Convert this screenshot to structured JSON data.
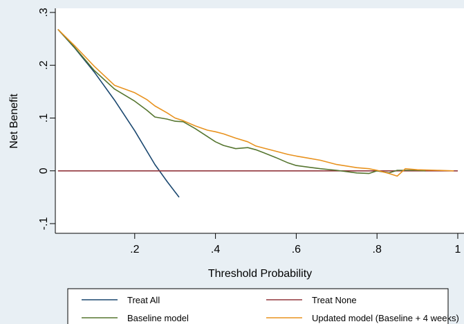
{
  "chart_data": {
    "type": "line",
    "title": "",
    "xlabel": "Threshold Probability",
    "ylabel": "Net Benefit",
    "xlim": [
      0,
      1
    ],
    "ylim": [
      -0.1,
      0.3
    ],
    "x_ticks": [
      0.2,
      0.4,
      0.6,
      0.8,
      1
    ],
    "x_tick_labels": [
      ".2",
      ".4",
      ".6",
      ".8",
      "1"
    ],
    "y_ticks": [
      -0.1,
      0,
      0.1,
      0.2,
      0.3
    ],
    "y_tick_labels": [
      "-.1",
      "0",
      ".1",
      ".2",
      ".3"
    ],
    "grid": false,
    "legend": "bottom",
    "series": [
      {
        "name": "Treat All",
        "color": "#1a476f",
        "x": [
          0.01,
          0.05,
          0.1,
          0.15,
          0.2,
          0.25,
          0.28,
          0.31
        ],
        "y": [
          0.268,
          0.234,
          0.187,
          0.134,
          0.076,
          0.012,
          -0.02,
          -0.05
        ]
      },
      {
        "name": "Treat None",
        "color": "#90353b",
        "x": [
          0.01,
          1
        ],
        "y": [
          0,
          0
        ]
      },
      {
        "name": "Baseline model",
        "color": "#55752f",
        "x": [
          0.01,
          0.05,
          0.1,
          0.15,
          0.2,
          0.23,
          0.25,
          0.28,
          0.3,
          0.32,
          0.35,
          0.38,
          0.4,
          0.42,
          0.45,
          0.48,
          0.5,
          0.52,
          0.55,
          0.58,
          0.6,
          0.63,
          0.66,
          0.7,
          0.75,
          0.78,
          0.8,
          0.83,
          0.85,
          0.9,
          0.92
        ],
        "y": [
          0.268,
          0.235,
          0.19,
          0.155,
          0.132,
          0.115,
          0.102,
          0.098,
          0.094,
          0.093,
          0.08,
          0.065,
          0.055,
          0.048,
          0.042,
          0.044,
          0.04,
          0.034,
          0.025,
          0.015,
          0.01,
          0.007,
          0.004,
          0.001,
          -0.004,
          -0.005,
          0.0,
          -0.004,
          0.001,
          0.001,
          0.0
        ]
      },
      {
        "name": "Updated model (Baseline + 4 weeks)",
        "color": "#e8921e",
        "x": [
          0.01,
          0.05,
          0.1,
          0.15,
          0.2,
          0.23,
          0.25,
          0.28,
          0.3,
          0.32,
          0.35,
          0.38,
          0.4,
          0.42,
          0.45,
          0.48,
          0.5,
          0.52,
          0.55,
          0.58,
          0.6,
          0.63,
          0.66,
          0.7,
          0.75,
          0.78,
          0.8,
          0.83,
          0.85,
          0.87,
          0.9,
          0.95,
          0.99
        ],
        "y": [
          0.268,
          0.238,
          0.198,
          0.162,
          0.148,
          0.135,
          0.123,
          0.11,
          0.1,
          0.095,
          0.085,
          0.077,
          0.074,
          0.07,
          0.062,
          0.055,
          0.047,
          0.043,
          0.037,
          0.031,
          0.028,
          0.024,
          0.02,
          0.012,
          0.006,
          0.004,
          0.001,
          -0.005,
          -0.01,
          0.004,
          0.002,
          0.001,
          0.0
        ]
      }
    ]
  }
}
